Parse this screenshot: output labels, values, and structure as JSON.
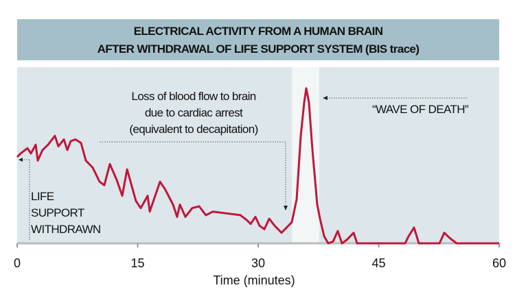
{
  "chart_data": {
    "type": "line",
    "title": [
      "ELECTRICAL ACTIVITY FROM A HUMAN BRAIN",
      "AFTER WITHDRAWAL OF LIFE SUPPORT SYSTEM (BIS trace)"
    ],
    "xlabel": "Time (minutes)",
    "ylabel": "",
    "xlim": [
      0,
      60
    ],
    "ylim": [
      0,
      100
    ],
    "xticks": [
      0,
      15,
      30,
      45,
      60
    ],
    "grid": false,
    "line_color": "#c0163a",
    "highlight_band": [
      34.2,
      37.6
    ],
    "series": [
      {
        "name": "BIS trace",
        "x": [
          0,
          0.43,
          1.28,
          1.71,
          2.31,
          2.56,
          3.16,
          3.85,
          4.7,
          5.13,
          5.81,
          6.24,
          6.67,
          7.26,
          7.95,
          8.55,
          9.4,
          10.26,
          10.85,
          11.54,
          12.39,
          13.08,
          13.68,
          14.79,
          15.38,
          16.24,
          16.5,
          17.78,
          18.38,
          19.4,
          19.91,
          20.26,
          20.94,
          21.79,
          22.65,
          23.5,
          24.36,
          26.07,
          27.78,
          28.63,
          29.06,
          29.66,
          30.17,
          30.77,
          31.37,
          32.05,
          32.48,
          32.91,
          33.76,
          34.19,
          34.79,
          35.3,
          35.73,
          35.98,
          36.32,
          36.75,
          37.35,
          37.69,
          38.21,
          38.72,
          39.32,
          39.91,
          40.43,
          41.03,
          41.88,
          42.31,
          48.29,
          48.72,
          49.4,
          50.0,
          52.56,
          53.16,
          53.85,
          54.7,
          60
        ],
        "y": [
          49,
          51,
          54,
          51,
          56,
          47,
          53,
          56,
          61,
          55,
          59,
          53,
          58,
          59,
          57,
          47,
          43,
          35,
          33,
          45,
          36,
          27,
          42,
          24,
          20,
          27,
          18,
          35,
          31,
          22,
          15,
          22,
          15,
          20,
          21,
          16,
          18,
          17,
          16,
          13,
          11,
          15,
          10,
          8,
          14,
          10,
          8,
          6,
          10,
          12,
          25,
          61,
          80,
          88,
          80,
          53,
          22,
          14,
          4,
          0,
          1,
          7,
          0,
          2,
          6,
          0,
          0,
          4,
          9,
          0,
          0,
          6,
          3,
          0,
          0
        ]
      }
    ],
    "annotations": {
      "life_support": [
        "LIFE",
        "SUPPORT",
        "WITHDRAWN"
      ],
      "cardiac": [
        "Loss of blood flow to brain",
        "due to cardiac arrest",
        "(equivalent to decapitation)"
      ],
      "wave": "“WAVE OF DEATH”"
    }
  }
}
